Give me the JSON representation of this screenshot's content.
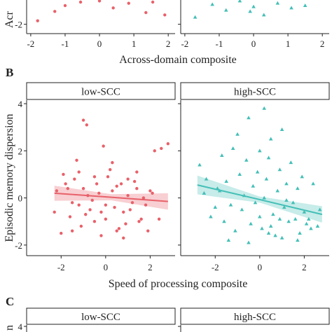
{
  "chart_data": [
    {
      "type": "scatter",
      "x_label": "Across-domain composite",
      "y_label": "Acr",
      "xlim": [
        -2.12,
        2.2
      ],
      "xticks": [
        -2,
        -1,
        0,
        1,
        2
      ],
      "ylim": [
        -2.4,
        -0.96
      ],
      "yticks": [
        -2
      ],
      "facets": [
        {
          "color": "#e8616a",
          "marker": "circle",
          "x": [
            -1.8,
            -1.3,
            -1.0,
            -0.55,
            0.0,
            0.4,
            0.85,
            1.35,
            1.9,
            1.55
          ],
          "y": [
            -1.85,
            -1.45,
            -1.2,
            -1.05,
            -1.0,
            -1.3,
            -1.1,
            -1.5,
            -1.6,
            -1.05
          ]
        },
        {
          "color": "#44bfb7",
          "marker": "triangle",
          "x": [
            -1.7,
            -1.2,
            -0.8,
            -0.4,
            0.0,
            0.3,
            0.7,
            1.1,
            1.5,
            -0.1
          ],
          "y": [
            -1.7,
            -1.15,
            -1.4,
            -1.0,
            -1.25,
            -1.6,
            -1.1,
            -1.3,
            -1.2,
            -1.45
          ]
        }
      ]
    },
    {
      "type": "scatter",
      "panel": "B",
      "x_label": "Speed of processing composite",
      "y_label": "Episodic memory dispersion",
      "xlim": [
        -3.55,
        3.12
      ],
      "xticks": [
        -2,
        0,
        2
      ],
      "ylim": [
        -2.45,
        4.15
      ],
      "yticks": [
        -2,
        0,
        2,
        4
      ],
      "facets": [
        {
          "name": "low-SCC",
          "color": "#e8616a",
          "marker": "circle",
          "x": [
            -1.0,
            -0.85,
            -0.1,
            2.8,
            2.5,
            2.2,
            -1.3,
            0.3,
            -2.2,
            -1.8,
            -1.5,
            -1.2,
            -1.0,
            -0.7,
            -0.5,
            -0.3,
            0.0,
            0.2,
            0.5,
            0.8,
            1.0,
            1.3,
            1.6,
            2.0,
            -2.0,
            -1.6,
            -1.1,
            -0.6,
            -0.2,
            0.4,
            0.9,
            1.4,
            1.8,
            2.4,
            -1.9,
            -1.4,
            -0.9,
            -0.4,
            0.1,
            0.6,
            1.1,
            1.5,
            2.1,
            -2.3,
            -1.7,
            -0.8,
            0.0,
            0.7,
            1.2,
            1.9,
            -1.2,
            -0.5,
            0.3,
            1.0,
            1.7,
            -0.2,
            0.5,
            -1.5,
            1.4,
            0.8
          ],
          "y": [
            3.3,
            3.1,
            2.2,
            2.3,
            2.1,
            2.0,
            1.6,
            1.5,
            0.3,
            0.6,
            -0.2,
            1.1,
            0.4,
            -0.5,
            0.9,
            0.2,
            -0.3,
            1.2,
            0.5,
            -0.6,
            0.1,
            0.7,
            -0.9,
            0.3,
            -1.5,
            -0.8,
            -1.2,
            -0.1,
            -1.6,
            -0.4,
            -1.1,
            0.4,
            -0.3,
            -0.9,
            1.0,
            0.8,
            -0.7,
            0.6,
            0.9,
            -1.3,
            -0.5,
            -1.0,
            0.2,
            -0.6,
            0.4,
            0.1,
            -0.9,
            0.6,
            -0.2,
            -1.4,
            -0.3,
            -1.0,
            0.3,
            0.8,
            0.0,
            -0.6,
            -1.4,
            -1.4,
            1.1,
            -1.7
          ],
          "fit": {
            "x": [
              -2.3,
              0.25,
              2.8
            ],
            "y": [
              0.2,
              0.03,
              -0.15
            ],
            "lower": [
              -0.12,
              -0.1,
              -0.5
            ],
            "upper": [
              0.52,
              0.16,
              0.2
            ]
          }
        },
        {
          "name": "high-SCC",
          "color": "#44bfb7",
          "marker": "triangle",
          "x": [
            0.2,
            -0.5,
            1.0,
            -1.0,
            0.5,
            -2.7,
            -2.4,
            -1.7,
            -1.2,
            -0.6,
            0.0,
            0.4,
            0.9,
            1.4,
            1.9,
            2.4,
            2.7,
            -2.5,
            -2.0,
            -1.5,
            -0.9,
            -0.3,
            0.3,
            0.8,
            1.2,
            1.7,
            2.2,
            -2.2,
            -1.8,
            -1.3,
            -0.8,
            -0.2,
            0.6,
            1.1,
            1.6,
            2.0,
            2.6,
            -1.6,
            -1.1,
            -0.4,
            0.1,
            0.7,
            1.3,
            1.8,
            2.3,
            -0.7,
            0.0,
            0.5,
            1.0,
            1.5,
            -1.4,
            -0.1,
            0.4,
            1.2,
            2.1,
            -0.5,
            0.2,
            0.9,
            -1.9,
            1.7
          ],
          "y": [
            3.8,
            3.4,
            2.9,
            2.7,
            2.5,
            1.4,
            0.8,
            1.8,
            2.1,
            1.6,
            2.0,
            1.7,
            1.2,
            1.5,
            0.9,
            0.6,
            -0.5,
            0.2,
            -0.4,
            0.7,
            1.0,
            0.5,
            0.8,
            0.3,
            -0.1,
            0.4,
            -0.9,
            -0.8,
            0.3,
            -0.3,
            -0.5,
            -0.2,
            -0.7,
            -0.4,
            -0.9,
            -0.6,
            -1.2,
            -1.0,
            -1.4,
            -1.1,
            -1.3,
            -1.6,
            -1.0,
            -1.5,
            -1.3,
            0.1,
            -0.8,
            -1.2,
            -1.7,
            -0.2,
            -1.8,
            1.1,
            -1.5,
            0.6,
            -1.1,
            -1.9,
            0.0,
            -0.9,
            0.4,
            -1.8
          ],
          "fit": {
            "x": [
              -2.8,
              0,
              2.8
            ],
            "y": [
              0.55,
              -0.07,
              -0.7
            ],
            "lower": [
              0.15,
              -0.2,
              -1.05
            ],
            "upper": [
              0.95,
              0.06,
              -0.35
            ]
          }
        }
      ]
    },
    {
      "type": "scatter",
      "panel": "C",
      "y_label": "n",
      "ylim": [
        3.76,
        4.06
      ],
      "yticks": [
        4
      ],
      "facets": [
        {
          "name": "low-SCC"
        },
        {
          "name": "high-SCC"
        }
      ]
    }
  ]
}
